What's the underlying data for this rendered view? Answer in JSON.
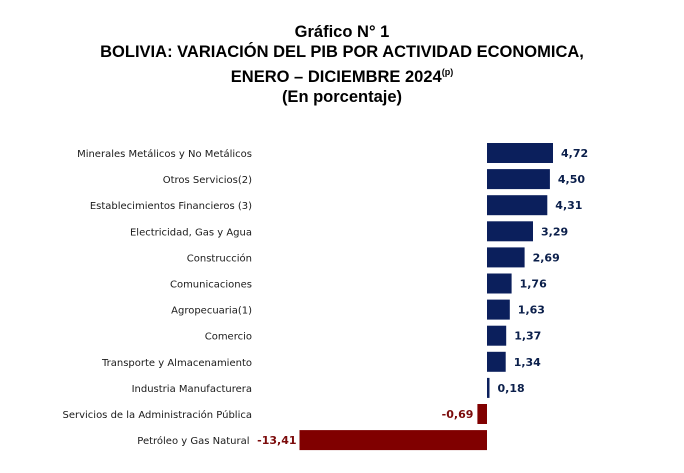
{
  "header": {
    "line1": "Gráfico N° 1",
    "line2a": "BOLIVIA",
    "line2b": ": VARIACIÓN DEL PIB POR ACTIVIDAD ECONOMICA,",
    "line3": "ENERO – DICIEMBRE 2024",
    "line3_sup": "(p)",
    "line4": "(En porcentaje)"
  },
  "colors": {
    "positive": "#0b1f5c",
    "negative": "#800000"
  },
  "chart_data": {
    "type": "bar",
    "orientation": "horizontal",
    "title": "BOLIVIA: VARIACIÓN DEL PIB POR ACTIVIDAD ECONOMICA, ENERO – DICIEMBRE 2024(p)",
    "categories": [
      "Minerales Metálicos y No Metálicos",
      "Otros Servicios(2)",
      "Establecimientos Financieros (3)",
      "Electricidad, Gas y Agua",
      "Construcción",
      "Comunicaciones",
      "Agropecuaria(1)",
      "Comercio",
      "Transporte y Almacenamiento",
      "Industria Manufacturera",
      "Servicios de la Administración Pública",
      "Petróleo y Gas Natural"
    ],
    "values": [
      4.72,
      4.5,
      4.31,
      3.29,
      2.69,
      1.76,
      1.63,
      1.37,
      1.34,
      0.18,
      -0.69,
      -13.41
    ],
    "value_labels": [
      "4,72",
      "4,50",
      "4,31",
      "3,29",
      "2,69",
      "1,76",
      "1,63",
      "1,37",
      "1,34",
      "0,18",
      "-0,69",
      "-13,41"
    ],
    "xlim": [
      -13.41,
      4.72
    ],
    "grid": false,
    "legend": "none"
  }
}
